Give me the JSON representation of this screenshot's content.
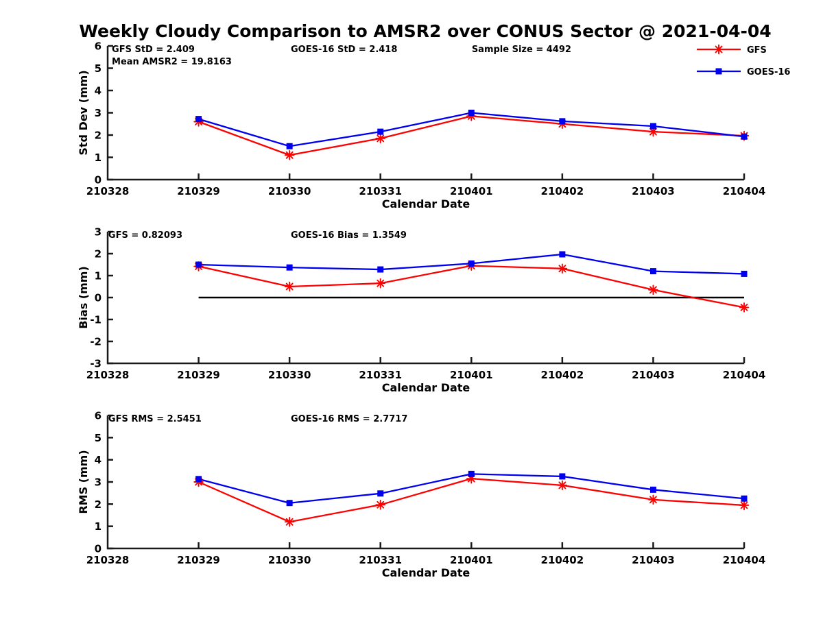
{
  "title": "Weekly Cloudy Comparison to AMSR2 over CONUS Sector @ 2021-04-04",
  "colors": {
    "gfs": "#ff0000",
    "goes16": "#0000f0",
    "axis": "#1a1a1a",
    "zero_line": "#000000",
    "text": "#000000"
  },
  "legend": {
    "position": "top-right",
    "items": [
      {
        "label": "GFS",
        "color": "#ff0000",
        "marker": "asterisk"
      },
      {
        "label": "GOES-16",
        "color": "#0000f0",
        "marker": "square"
      }
    ]
  },
  "x_axis": {
    "label": "Calendar Date",
    "tick_labels": [
      "210328",
      "210329",
      "210330",
      "210331",
      "210401",
      "210402",
      "210403",
      "210404"
    ]
  },
  "chart_data": [
    {
      "id": "stddev",
      "type": "line",
      "ylabel": "Std Dev (mm)",
      "ylim": [
        0,
        6
      ],
      "yticks": [
        0,
        1,
        2,
        3,
        4,
        5,
        6
      ],
      "categories": [
        "210329",
        "210330",
        "210331",
        "210401",
        "210402",
        "210403",
        "210404"
      ],
      "series": [
        {
          "name": "GFS",
          "color": "#ff0000",
          "marker": "asterisk",
          "values": [
            2.6,
            1.1,
            1.85,
            2.85,
            2.5,
            2.15,
            1.97
          ]
        },
        {
          "name": "GOES-16",
          "color": "#0000f0",
          "marker": "square",
          "values": [
            2.72,
            1.5,
            2.15,
            3.0,
            2.62,
            2.4,
            1.93
          ]
        }
      ],
      "zero_line": false,
      "annotations": [
        {
          "text": "GFS StD = 2.409",
          "fx": 0.0065,
          "row": 0
        },
        {
          "text": "Mean AMSR2 = 19.8163",
          "fx": 0.0065,
          "row": 1
        },
        {
          "text": "GOES-16 StD = 2.418",
          "fx": 0.2877,
          "row": 0
        },
        {
          "text": "Sample Size = 4492",
          "fx": 0.572,
          "row": 0
        }
      ]
    },
    {
      "id": "bias",
      "type": "line",
      "ylabel": "Bias (mm)",
      "ylim": [
        -3,
        3
      ],
      "yticks": [
        -3,
        -2,
        -1,
        0,
        1,
        2,
        3
      ],
      "categories": [
        "210329",
        "210330",
        "210331",
        "210401",
        "210402",
        "210403",
        "210404"
      ],
      "series": [
        {
          "name": "GFS",
          "color": "#ff0000",
          "marker": "asterisk",
          "values": [
            1.42,
            0.5,
            0.65,
            1.45,
            1.32,
            0.35,
            -0.45
          ]
        },
        {
          "name": "GOES-16",
          "color": "#0000f0",
          "marker": "square",
          "values": [
            1.5,
            1.37,
            1.28,
            1.55,
            1.97,
            1.2,
            1.08
          ]
        }
      ],
      "zero_line": true,
      "annotations": [
        {
          "text": "GFS = 0.82093",
          "fx": 0.001,
          "row": 0
        },
        {
          "text": "GOES-16 Bias  = 1.3549",
          "fx": 0.2877,
          "row": 0
        }
      ]
    },
    {
      "id": "rms",
      "type": "line",
      "ylabel": "RMS (mm)",
      "ylim": [
        0,
        6
      ],
      "yticks": [
        0,
        1,
        2,
        3,
        4,
        5,
        6
      ],
      "categories": [
        "210329",
        "210330",
        "210331",
        "210401",
        "210402",
        "210403",
        "210404"
      ],
      "series": [
        {
          "name": "GFS",
          "color": "#ff0000",
          "marker": "asterisk",
          "values": [
            3.0,
            1.2,
            1.97,
            3.15,
            2.85,
            2.2,
            1.95
          ]
        },
        {
          "name": "GOES-16",
          "color": "#0000f0",
          "marker": "square",
          "values": [
            3.13,
            2.05,
            2.48,
            3.36,
            3.25,
            2.65,
            2.25
          ]
        }
      ],
      "zero_line": false,
      "annotations": [
        {
          "text": "GFS RMS = 2.5451",
          "fx": 0.001,
          "row": 0
        },
        {
          "text": "GOES-16 RMS = 2.7717",
          "fx": 0.2877,
          "row": 0
        }
      ]
    }
  ]
}
